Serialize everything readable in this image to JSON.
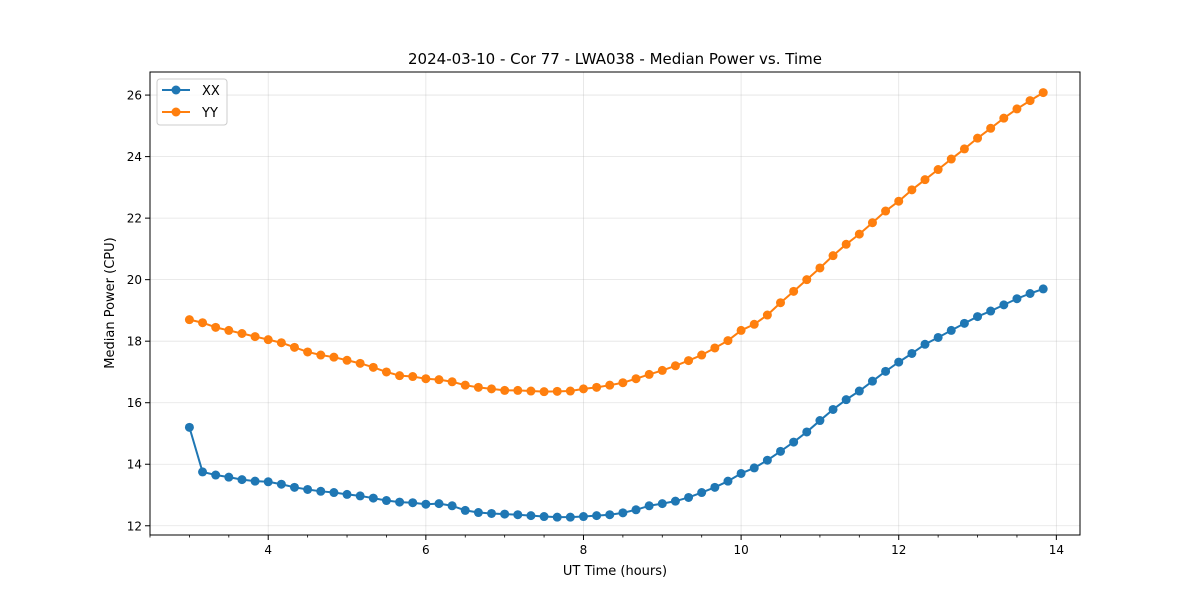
{
  "chart_data": {
    "type": "line",
    "title": "2024-03-10 - Cor 77 - LWA038 - Median Power vs. Time",
    "xlabel": "UT Time (hours)",
    "ylabel": "Median Power (CPU)",
    "xlim": [
      2.5,
      14.3
    ],
    "ylim": [
      11.7,
      26.75
    ],
    "xticks": [
      4,
      6,
      8,
      10,
      12,
      14
    ],
    "yticks": [
      12,
      14,
      16,
      18,
      20,
      22,
      24,
      26
    ],
    "xtick_labels": [
      "4",
      "6",
      "8",
      "10",
      "12",
      "14"
    ],
    "ytick_labels": [
      "12",
      "14",
      "16",
      "18",
      "20",
      "22",
      "24",
      "26"
    ],
    "grid": true,
    "legend_position": "top-left",
    "x": [
      3.0,
      3.1667,
      3.3333,
      3.5,
      3.6667,
      3.8333,
      4.0,
      4.1667,
      4.3333,
      4.5,
      4.6667,
      4.8333,
      5.0,
      5.1667,
      5.3333,
      5.5,
      5.6667,
      5.8333,
      6.0,
      6.1667,
      6.3333,
      6.5,
      6.6667,
      6.8333,
      7.0,
      7.1667,
      7.3333,
      7.5,
      7.6667,
      7.8333,
      8.0,
      8.1667,
      8.3333,
      8.5,
      8.6667,
      8.8333,
      9.0,
      9.1667,
      9.3333,
      9.5,
      9.6667,
      9.8333,
      10.0,
      10.1667,
      10.3333,
      10.5,
      10.6667,
      10.8333,
      11.0,
      11.1667,
      11.3333,
      11.5,
      11.6667,
      11.8333,
      12.0,
      12.1667,
      12.3333,
      12.5,
      12.6667,
      12.8333,
      13.0,
      13.1667,
      13.3333,
      13.5,
      13.6667,
      13.8333
    ],
    "series": [
      {
        "name": "XX",
        "color": "#1f77b4",
        "values": [
          15.2,
          13.75,
          13.65,
          13.58,
          13.5,
          13.45,
          13.43,
          13.35,
          13.25,
          13.18,
          13.12,
          13.08,
          13.02,
          12.97,
          12.9,
          12.82,
          12.77,
          12.75,
          12.7,
          12.72,
          12.65,
          12.5,
          12.43,
          12.4,
          12.38,
          12.36,
          12.33,
          12.3,
          12.28,
          12.28,
          12.3,
          12.33,
          12.36,
          12.42,
          12.52,
          12.65,
          12.72,
          12.8,
          12.92,
          13.08,
          13.25,
          13.45,
          13.7,
          13.88,
          14.13,
          14.42,
          14.72,
          15.05,
          15.42,
          15.78,
          16.1,
          16.38,
          16.7,
          17.02,
          17.32,
          17.6,
          17.9,
          18.12,
          18.35,
          18.58,
          18.8,
          18.98,
          19.18,
          19.38,
          19.55,
          19.7
        ]
      },
      {
        "name": "YY",
        "color": "#ff7f0e",
        "values": [
          18.7,
          18.6,
          18.45,
          18.35,
          18.25,
          18.15,
          18.05,
          17.95,
          17.8,
          17.65,
          17.55,
          17.48,
          17.38,
          17.28,
          17.15,
          17.0,
          16.88,
          16.85,
          16.78,
          16.75,
          16.68,
          16.57,
          16.5,
          16.45,
          16.4,
          16.4,
          16.38,
          16.36,
          16.37,
          16.38,
          16.45,
          16.5,
          16.57,
          16.65,
          16.78,
          16.92,
          17.05,
          17.2,
          17.37,
          17.55,
          17.78,
          18.02,
          18.35,
          18.55,
          18.85,
          19.25,
          19.62,
          20.0,
          20.38,
          20.78,
          21.15,
          21.48,
          21.85,
          22.23,
          22.55,
          22.92,
          23.25,
          23.58,
          23.92,
          24.25,
          24.6,
          24.92,
          25.25,
          25.55,
          25.82,
          26.08
        ]
      }
    ]
  }
}
